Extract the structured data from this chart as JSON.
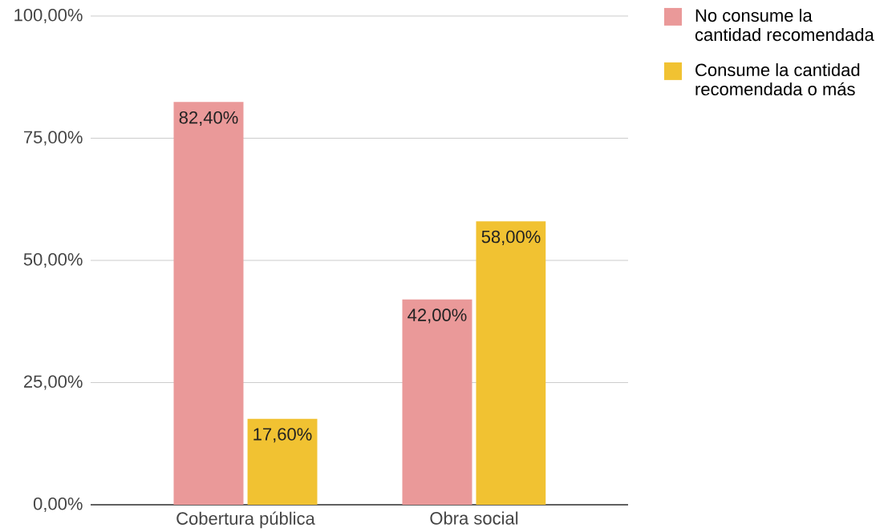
{
  "chart_data": {
    "type": "bar",
    "categories": [
      "Cobertura pública",
      "Obra social"
    ],
    "series": [
      {
        "name": "No consume la cantidad recomendada",
        "color": "#ea9999",
        "values": [
          82.4,
          42
        ],
        "value_labels": [
          "82,40%",
          "42,00%"
        ]
      },
      {
        "name": "Consume la cantidad recomendada o más",
        "color": "#f1c232",
        "values": [
          17.6,
          58
        ],
        "value_labels": [
          "17,60%",
          "58,00%"
        ]
      }
    ],
    "ylim": [
      0,
      100
    ],
    "yticks": [
      {
        "value": 0,
        "label": "0,00%"
      },
      {
        "value": 25,
        "label": "25,00%"
      },
      {
        "value": 50,
        "label": "50,00%"
      },
      {
        "value": 75,
        "label": "75,00%"
      },
      {
        "value": 100,
        "label": "100,00%"
      }
    ],
    "grid": "y",
    "legend": "top right"
  }
}
